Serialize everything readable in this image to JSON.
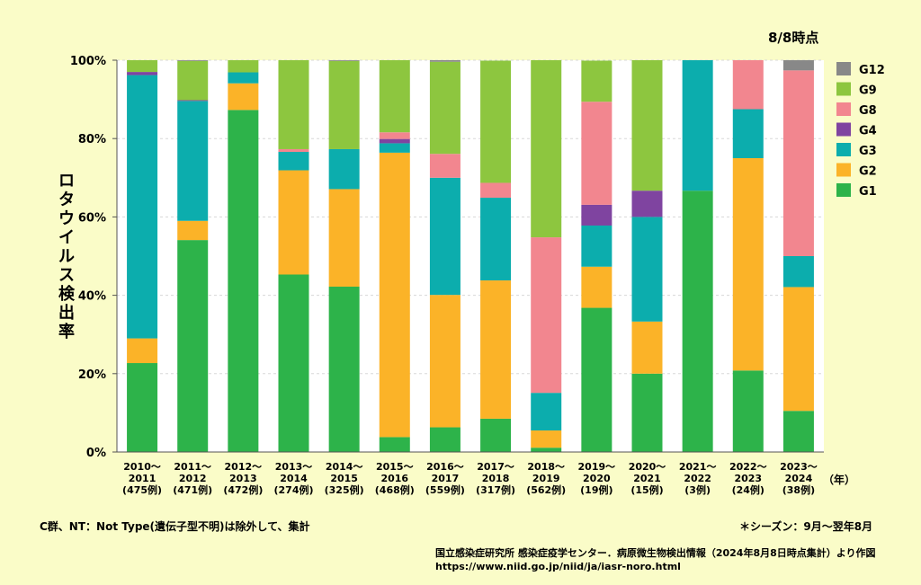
{
  "chart_data": {
    "type": "bar",
    "stacked": true,
    "as_of": "8/8時点",
    "ylabel": "ロタウイルス検出率",
    "xlabel": "",
    "x_unit": "（年）",
    "ylim": [
      0,
      100
    ],
    "yticks": [
      "0%",
      "20%",
      "40%",
      "60%",
      "80%",
      "100%"
    ],
    "grid": true,
    "legend_position": "right",
    "categories": [
      {
        "season_line1": "2010～",
        "season_line2": "2011",
        "count": "(475例)"
      },
      {
        "season_line1": "2011～",
        "season_line2": "2012",
        "count": "(471例)"
      },
      {
        "season_line1": "2012～",
        "season_line2": "2013",
        "count": "(472例)"
      },
      {
        "season_line1": "2013～",
        "season_line2": "2014",
        "count": "(274例)"
      },
      {
        "season_line1": "2014～",
        "season_line2": "2015",
        "count": "(325例)"
      },
      {
        "season_line1": "2015～",
        "season_line2": "2016",
        "count": "(468例)"
      },
      {
        "season_line1": "2016～",
        "season_line2": "2017",
        "count": "(559例)"
      },
      {
        "season_line1": "2017～",
        "season_line2": "2018",
        "count": "(317例)"
      },
      {
        "season_line1": "2018～",
        "season_line2": "2019",
        "count": "(562例)"
      },
      {
        "season_line1": "2019～",
        "season_line2": "2020",
        "count": "(19例)"
      },
      {
        "season_line1": "2020～",
        "season_line2": "2021",
        "count": "(15例)"
      },
      {
        "season_line1": "2021～",
        "season_line2": "2022",
        "count": "(3例)"
      },
      {
        "season_line1": "2022～",
        "season_line2": "2023",
        "count": "(24例)"
      },
      {
        "season_line1": "2023～",
        "season_line2": "2024",
        "count": "(38例)"
      }
    ],
    "series": [
      {
        "name": "G1",
        "color": "#2db34a",
        "values": [
          22.7,
          54.1,
          87.3,
          45.3,
          42.2,
          3.8,
          6.3,
          8.5,
          1.1,
          36.8,
          20.0,
          66.7,
          20.8,
          10.5
        ]
      },
      {
        "name": "G2",
        "color": "#fbb328",
        "values": [
          6.3,
          4.9,
          6.8,
          26.6,
          24.9,
          72.6,
          33.8,
          35.3,
          4.4,
          10.5,
          13.3,
          0,
          54.2,
          31.6
        ]
      },
      {
        "name": "G3",
        "color": "#0cadad",
        "values": [
          67.2,
          30.6,
          2.8,
          4.7,
          10.2,
          2.4,
          29.9,
          21.1,
          9.6,
          10.5,
          26.7,
          33.3,
          12.5,
          7.9
        ]
      },
      {
        "name": "G4",
        "color": "#7f44a0",
        "values": [
          0.8,
          0.2,
          0,
          0,
          0,
          1.1,
          0,
          0,
          0,
          5.3,
          6.7,
          0,
          0,
          0
        ]
      },
      {
        "name": "G8",
        "color": "#f2868f",
        "values": [
          0,
          0,
          0,
          0.7,
          0,
          1.7,
          6.1,
          3.8,
          39.7,
          26.3,
          0,
          0,
          12.5,
          47.4
        ]
      },
      {
        "name": "G9",
        "color": "#8dc63f",
        "values": [
          3.0,
          10.0,
          3.1,
          22.7,
          22.5,
          18.4,
          23.5,
          31.2,
          45.2,
          10.5,
          33.3,
          0,
          0,
          0
        ]
      },
      {
        "name": "G12",
        "color": "#888888",
        "values": [
          0,
          0.2,
          0,
          0,
          0.2,
          0,
          0.4,
          0,
          0,
          0,
          0,
          0,
          0,
          2.6
        ]
      }
    ],
    "legend_order": [
      "G12",
      "G9",
      "G8",
      "G4",
      "G3",
      "G2",
      "G1"
    ]
  },
  "footnotes": {
    "exclusion": "C群、NT：Not Type(遺伝子型不明)は除外して、集計",
    "season": "＊シーズン：9月～翌年8月",
    "source_line1": "国立感染症研究所 感染症疫学センター．病原微生物検出情報（2024年8月8日時点集計）より作図",
    "source_line2": "https://www.niid.go.jp/niid/ja/iasr-noro.html"
  }
}
